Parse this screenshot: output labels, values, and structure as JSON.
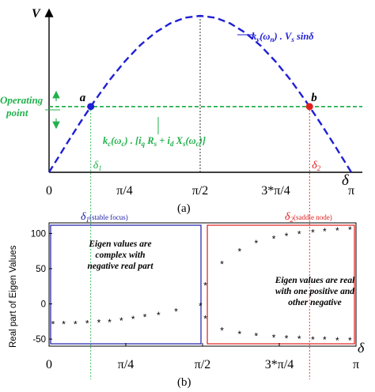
{
  "chart_data": [
    {
      "type": "line",
      "panel_label": "(a)",
      "ylabel": "V",
      "xlabel": "δ",
      "x_ticks": [
        "0",
        "π/4",
        "π/2",
        "3*π/4",
        "π"
      ],
      "xlim": [
        0,
        3.1416
      ],
      "series": [
        {
          "name": "k_v(ω_n) . V_s sinδ",
          "style": "dashed",
          "color": "#1f1fd6",
          "x": [
            0,
            0.157,
            0.314,
            0.471,
            0.628,
            0.785,
            0.942,
            1.1,
            1.257,
            1.414,
            1.571,
            1.728,
            1.885,
            2.042,
            2.199,
            2.356,
            2.513,
            2.67,
            2.827,
            2.985,
            3.1416
          ],
          "y": [
            0,
            0.156,
            0.309,
            0.454,
            0.588,
            0.707,
            0.809,
            0.891,
            0.951,
            0.988,
            1.0,
            0.988,
            0.951,
            0.891,
            0.809,
            0.707,
            0.588,
            0.454,
            0.309,
            0.156,
            0
          ]
        },
        {
          "name": "k_c(ω_c) . [i_q R_s + i_d X_s(ω_c)]",
          "style": "dashed",
          "color": "#22b14c",
          "x": [
            0,
            3.1416
          ],
          "y": [
            0.42,
            0.42
          ]
        }
      ],
      "labels": {
        "curve": "k",
        "curve_sub": "v",
        "curve_a": "(ω",
        "curve_sub2": "n",
        "curve_b": ") . V",
        "curve_sub3": "s",
        "curve_c": " sinδ",
        "line": "k",
        "line_sub": "c",
        "line_a": "(ω",
        "line_sub2": "c",
        "line_b": ") . [i",
        "line_sub3": "q",
        "line_c": " R",
        "line_sub4": "s",
        "line_d": " + i",
        "line_sub5": "d",
        "line_e": " X",
        "line_sub6": "s",
        "line_f": "(ω",
        "line_sub7": "c",
        "line_g": ")]"
      },
      "operating_label": [
        "Operating",
        "point"
      ],
      "points": [
        {
          "label": "a",
          "x": 0.4335,
          "y": 0.42,
          "color": "#1f1fd6"
        },
        {
          "label": "b",
          "x": 2.708,
          "y": 0.42,
          "color": "#e02020"
        }
      ],
      "deltas": [
        {
          "symbol": "δ",
          "sub": "1",
          "x": 0.4335,
          "color": "#22b14c"
        },
        {
          "symbol": "δ",
          "sub": "2",
          "x": 2.708,
          "color": "#e02020"
        }
      ]
    },
    {
      "type": "scatter",
      "panel_label": "(b)",
      "ylabel": "Real part of Eigen Values",
      "xlabel": "δ",
      "x_ticks": [
        "0",
        "π/4",
        "π/2",
        "3*π/4",
        "π"
      ],
      "y_ticks": [
        -50,
        0,
        50,
        100
      ],
      "ylim": [
        -60,
        115
      ],
      "xlim": [
        0,
        3.1416
      ],
      "series": [
        {
          "name": "stable",
          "x": [
            0.04,
            0.15,
            0.27,
            0.39,
            0.51,
            0.62,
            0.74,
            0.86,
            0.98,
            1.12,
            1.3,
            1.55
          ],
          "y": [
            -28,
            -28,
            -28,
            -27,
            -26,
            -25,
            -23,
            -21,
            -18,
            -15,
            -10,
            -2
          ]
        },
        {
          "name": "upper",
          "x": [
            1.6,
            1.77,
            1.95,
            2.12,
            2.3,
            2.43,
            2.56,
            2.7,
            2.82,
            2.95,
            3.08
          ],
          "y": [
            27,
            57,
            75,
            87,
            93,
            97,
            100,
            102,
            104,
            105,
            106
          ]
        },
        {
          "name": "lower",
          "x": [
            1.6,
            1.77,
            1.95,
            2.12,
            2.3,
            2.43,
            2.56,
            2.7,
            2.82,
            2.95,
            3.08
          ],
          "y": [
            -20,
            -37,
            -42,
            -45,
            -47,
            -48,
            -49,
            -50,
            -50,
            -51,
            -51
          ]
        }
      ],
      "regions": [
        {
          "symbol": "δ",
          "sub": "1",
          "text": "(stable focus)",
          "color": "#1a1aa8",
          "x_from": 0,
          "x_to": 1.571
        },
        {
          "symbol": "δ",
          "sub": "2",
          "text": "(saddle node)",
          "color": "#e02020",
          "x_from": 1.62,
          "x_to": 3.1416
        }
      ],
      "annotations": [
        [
          "Eigen values are",
          "complex with",
          "negative real part"
        ],
        [
          "Eigen values are real",
          "with one positive and",
          "other negative"
        ]
      ]
    }
  ]
}
